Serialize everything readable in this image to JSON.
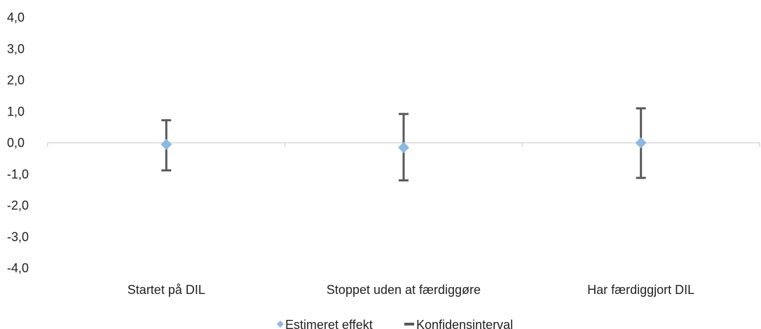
{
  "chart_data": {
    "type": "scatter",
    "categories": [
      "Startet på DIL",
      "Stoppet uden at færdiggøre",
      "Har færdiggjort DIL"
    ],
    "series": [
      {
        "name": "Estimeret effekt",
        "values": [
          -0.05,
          -0.15,
          0.0
        ]
      },
      {
        "name": "Konfidensinterval",
        "lower": [
          -0.88,
          -1.2,
          -1.12
        ],
        "upper": [
          0.72,
          0.92,
          1.1
        ]
      }
    ],
    "ylim": [
      -4.0,
      4.0
    ],
    "yticks": [
      "4,0",
      "3,0",
      "2,0",
      "1,0",
      "0,0",
      "-1,0",
      "-2,0",
      "-3,0",
      "-4,0"
    ],
    "ytick_values": [
      4,
      3,
      2,
      1,
      0,
      -1,
      -2,
      -3,
      -4
    ],
    "legend_position": "bottom",
    "grid": false,
    "colors": {
      "point": "#8db8df",
      "interval": "#595959",
      "axis": "#d9d9d9",
      "text": "#222222"
    }
  }
}
